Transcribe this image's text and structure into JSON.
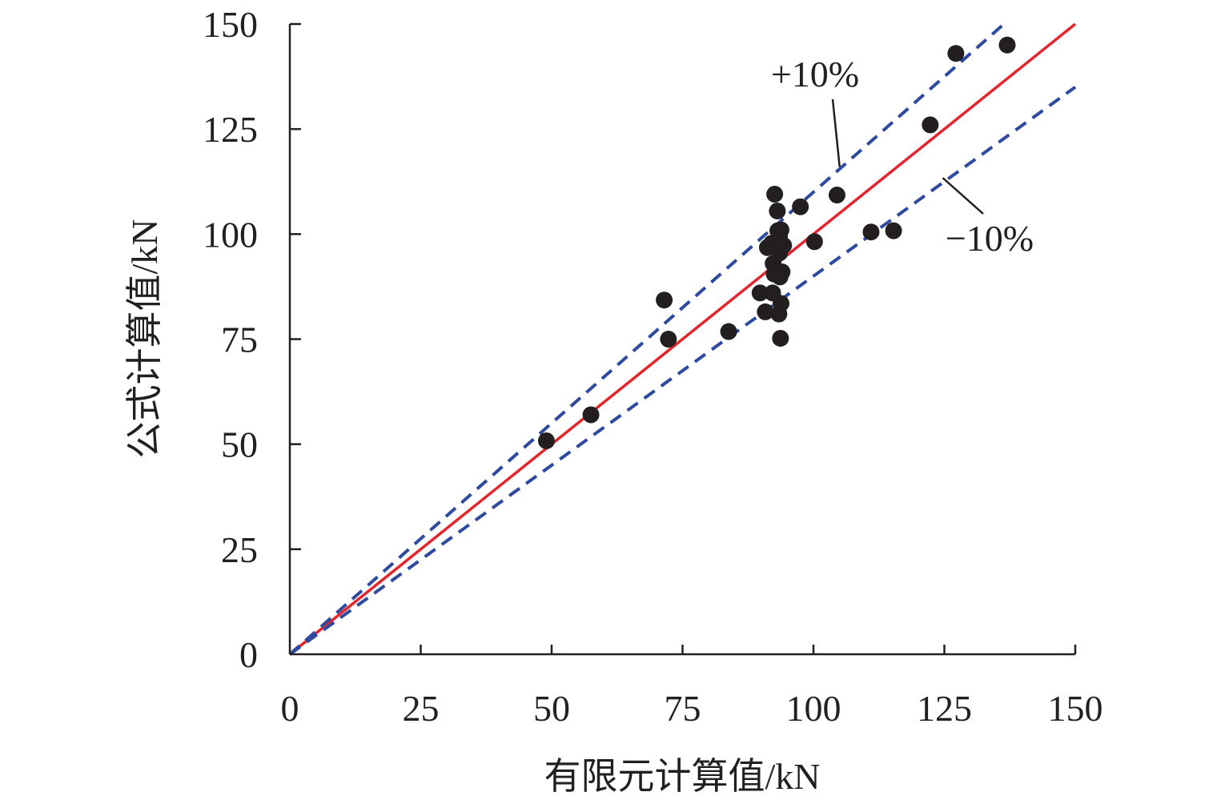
{
  "chart_data": {
    "type": "scatter",
    "xlabel": "有限元计算值/kN",
    "ylabel": "公式计算值/kN",
    "xlim": [
      0,
      150
    ],
    "ylim": [
      0,
      150
    ],
    "xticks": [
      0,
      25,
      50,
      75,
      100,
      125,
      150
    ],
    "yticks": [
      0,
      25,
      50,
      75,
      100,
      125,
      150
    ],
    "grid": false,
    "legend": "none",
    "colors": {
      "points": "#231f20",
      "reference_line": "#e3262b",
      "band_lines": "#2e4a9e",
      "axis": "#231f20"
    },
    "series": [
      {
        "values": [
          [
            49.0,
            50.8
          ],
          [
            57.5,
            57.0
          ],
          [
            71.5,
            84.3
          ],
          [
            72.3,
            75.0
          ],
          [
            83.8,
            76.8
          ],
          [
            89.8,
            86.0
          ],
          [
            90.8,
            81.5
          ],
          [
            91.2,
            96.8
          ],
          [
            92.0,
            97.8
          ],
          [
            92.3,
            93.0
          ],
          [
            92.5,
            90.5
          ],
          [
            92.2,
            86.0
          ],
          [
            92.6,
            109.5
          ],
          [
            93.1,
            105.5
          ],
          [
            93.2,
            100.8
          ],
          [
            93.5,
            99.5
          ],
          [
            93.5,
            95.5
          ],
          [
            93.6,
            89.8
          ],
          [
            93.4,
            81.0
          ],
          [
            93.8,
            83.5
          ],
          [
            93.7,
            75.2
          ],
          [
            94.0,
            91.0
          ],
          [
            94.3,
            97.3
          ],
          [
            93.8,
            101.0
          ],
          [
            97.5,
            106.5
          ],
          [
            100.2,
            98.2
          ],
          [
            104.5,
            109.3
          ],
          [
            111.0,
            100.5
          ],
          [
            115.3,
            100.8
          ],
          [
            122.3,
            126.0
          ],
          [
            127.2,
            143.0
          ],
          [
            137.0,
            145.0
          ]
        ]
      }
    ],
    "reference_lines": [
      {
        "slope": 1.0,
        "style": "solid",
        "x_range": [
          0,
          150
        ]
      },
      {
        "slope": 1.1,
        "style": "dashed",
        "x_range": [
          0,
          136.4
        ]
      },
      {
        "slope": 0.9,
        "style": "dashed",
        "x_range": [
          0,
          150
        ]
      }
    ],
    "annotations": [
      {
        "text": "+10%",
        "points_to_x": 105,
        "points_to_y": 116
      },
      {
        "text": "−10%",
        "points_to_x": 125,
        "points_to_y": 113
      }
    ]
  }
}
